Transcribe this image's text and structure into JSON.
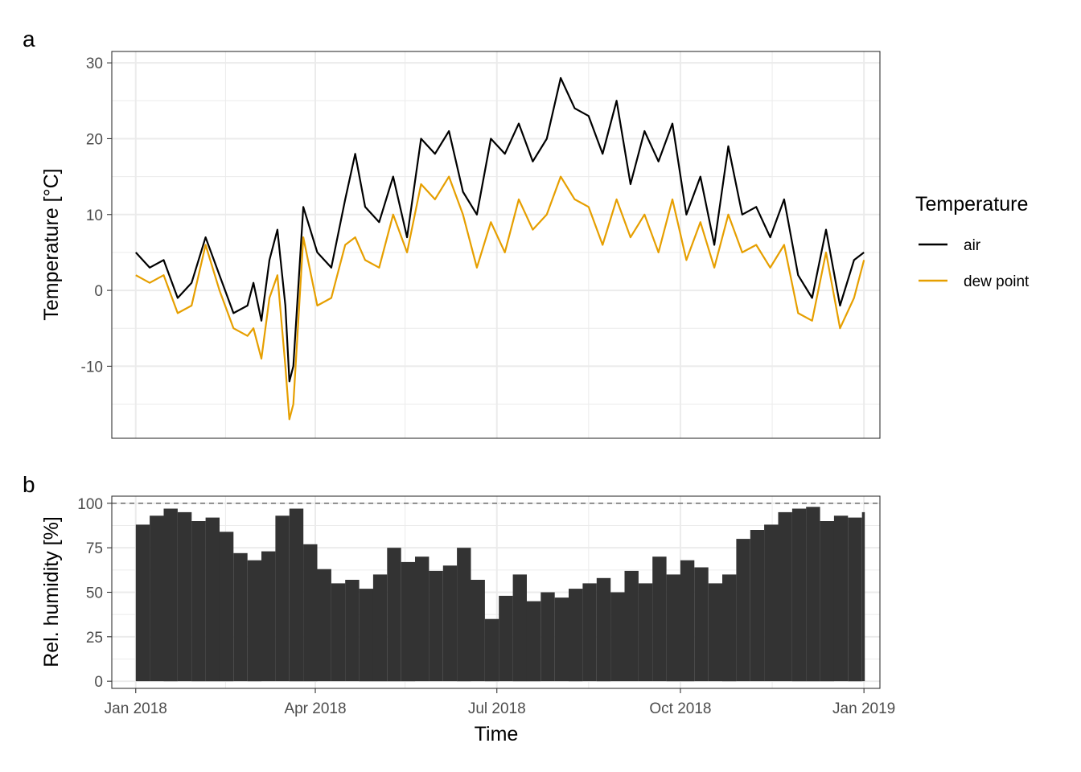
{
  "panels": {
    "a": "a",
    "b": "b"
  },
  "colors": {
    "air": "#000000",
    "dew_point": "#E69F00",
    "bar": "#333333",
    "grid": "#EBEBEB",
    "axis_text": "#4D4D4D"
  },
  "chart_data": [
    {
      "type": "line",
      "panel": "a",
      "ylabel": "Temperature [°C]",
      "x_type": "date",
      "xlim": [
        "2017-12-20",
        "2019-01-09"
      ],
      "ylim": [
        -19.5,
        31.5
      ],
      "y_ticks": [
        -10,
        0,
        10,
        20,
        30
      ],
      "y_tick_labels": [
        "-10",
        "0",
        "10",
        "20",
        "30"
      ],
      "grid": true,
      "legend": {
        "title": "Temperature",
        "position": "right",
        "entries": [
          "air",
          "dew point"
        ]
      },
      "x": [
        "2018-01-01",
        "2018-01-08",
        "2018-01-15",
        "2018-01-22",
        "2018-01-29",
        "2018-02-05",
        "2018-02-12",
        "2018-02-19",
        "2018-02-26",
        "2018-03-01",
        "2018-03-05",
        "2018-03-09",
        "2018-03-13",
        "2018-03-17",
        "2018-03-19",
        "2018-03-21",
        "2018-03-26",
        "2018-04-02",
        "2018-04-09",
        "2018-04-16",
        "2018-04-21",
        "2018-04-26",
        "2018-05-03",
        "2018-05-10",
        "2018-05-17",
        "2018-05-24",
        "2018-05-31",
        "2018-06-07",
        "2018-06-14",
        "2018-06-21",
        "2018-06-28",
        "2018-07-05",
        "2018-07-12",
        "2018-07-19",
        "2018-07-26",
        "2018-08-02",
        "2018-08-09",
        "2018-08-16",
        "2018-08-23",
        "2018-08-30",
        "2018-09-06",
        "2018-09-13",
        "2018-09-20",
        "2018-09-27",
        "2018-10-04",
        "2018-10-11",
        "2018-10-18",
        "2018-10-25",
        "2018-11-01",
        "2018-11-08",
        "2018-11-15",
        "2018-11-22",
        "2018-11-29",
        "2018-12-06",
        "2018-12-13",
        "2018-12-20",
        "2018-12-27",
        "2019-01-01"
      ],
      "series": [
        {
          "name": "air",
          "values": [
            5,
            3,
            4,
            -1,
            1,
            7,
            2,
            -3,
            -2,
            1,
            -4,
            4,
            8,
            -2,
            -12,
            -10,
            11,
            5,
            3,
            12,
            18,
            11,
            9,
            15,
            7,
            20,
            18,
            21,
            13,
            10,
            20,
            18,
            22,
            17,
            20,
            28,
            24,
            23,
            18,
            25,
            14,
            21,
            17,
            22,
            10,
            15,
            6,
            19,
            10,
            11,
            7,
            12,
            2,
            -1,
            8,
            -2,
            4,
            5
          ]
        },
        {
          "name": "dew point",
          "values": [
            2,
            1,
            2,
            -3,
            -2,
            6,
            0,
            -5,
            -6,
            -5,
            -9,
            -1,
            2,
            -10,
            -17,
            -15,
            7,
            -2,
            -1,
            6,
            7,
            4,
            3,
            10,
            5,
            14,
            12,
            15,
            10,
            3,
            9,
            5,
            12,
            8,
            10,
            15,
            12,
            11,
            6,
            12,
            7,
            10,
            5,
            12,
            4,
            9,
            3,
            10,
            5,
            6,
            3,
            6,
            -3,
            -4,
            5,
            -5,
            -1,
            4
          ]
        }
      ]
    },
    {
      "type": "bar",
      "panel": "b",
      "xlabel": "Time",
      "ylabel": "Rel. humidity [%]",
      "x_type": "date",
      "xlim": [
        "2017-12-20",
        "2019-01-09"
      ],
      "ylim": [
        -4,
        104
      ],
      "y_ticks": [
        0,
        25,
        50,
        75,
        100
      ],
      "y_tick_labels": [
        "0",
        "25",
        "50",
        "75",
        "100"
      ],
      "x_ticks": [
        "2018-01-01",
        "2018-04-01",
        "2018-07-01",
        "2018-10-01",
        "2019-01-01"
      ],
      "x_tick_labels": [
        "Jan 2018",
        "Apr 2018",
        "Jul 2018",
        "Oct 2018",
        "Jan 2019"
      ],
      "reference_line": 100,
      "grid": true,
      "x": [
        "2018-01-01",
        "2018-01-08",
        "2018-01-15",
        "2018-01-22",
        "2018-01-29",
        "2018-02-05",
        "2018-02-12",
        "2018-02-19",
        "2018-02-26",
        "2018-03-05",
        "2018-03-12",
        "2018-03-19",
        "2018-03-26",
        "2018-04-02",
        "2018-04-09",
        "2018-04-16",
        "2018-04-23",
        "2018-04-30",
        "2018-05-07",
        "2018-05-14",
        "2018-05-21",
        "2018-05-28",
        "2018-06-04",
        "2018-06-11",
        "2018-06-18",
        "2018-06-25",
        "2018-07-02",
        "2018-07-09",
        "2018-07-16",
        "2018-07-23",
        "2018-07-30",
        "2018-08-06",
        "2018-08-13",
        "2018-08-20",
        "2018-08-27",
        "2018-09-03",
        "2018-09-10",
        "2018-09-17",
        "2018-09-24",
        "2018-10-01",
        "2018-10-08",
        "2018-10-15",
        "2018-10-22",
        "2018-10-29",
        "2018-11-05",
        "2018-11-12",
        "2018-11-19",
        "2018-11-26",
        "2018-12-03",
        "2018-12-10",
        "2018-12-17",
        "2018-12-24",
        "2018-12-31"
      ],
      "values": [
        88,
        93,
        97,
        95,
        90,
        92,
        84,
        72,
        68,
        73,
        93,
        97,
        77,
        63,
        55,
        57,
        52,
        60,
        75,
        67,
        70,
        62,
        65,
        75,
        57,
        35,
        48,
        60,
        45,
        50,
        47,
        52,
        55,
        58,
        50,
        62,
        55,
        70,
        60,
        68,
        64,
        55,
        60,
        80,
        85,
        88,
        95,
        97,
        98,
        90,
        93,
        92,
        95
      ]
    }
  ]
}
